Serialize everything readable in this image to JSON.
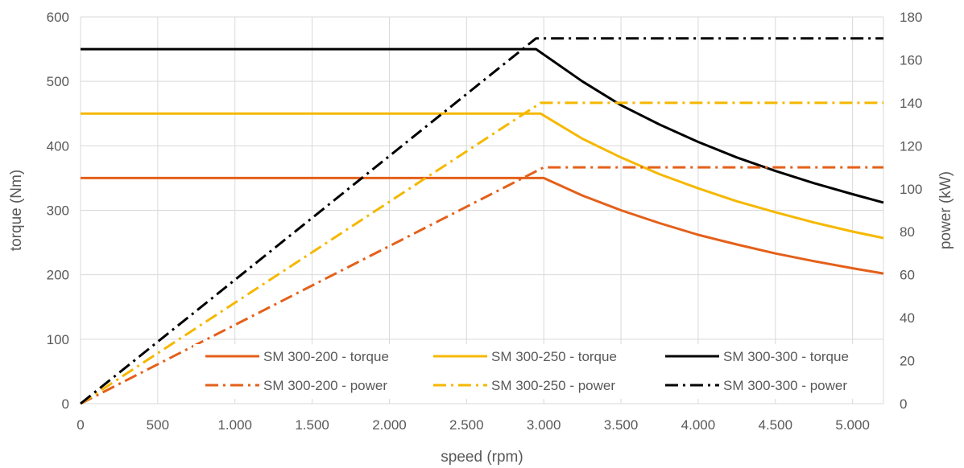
{
  "chart_data": {
    "type": "line",
    "title": "",
    "xlabel": "speed (rpm)",
    "ylabel": "torque (Nm)",
    "y2label": "power (kW)",
    "xlim": [
      0,
      5200
    ],
    "ylim": [
      0,
      600
    ],
    "y2lim": [
      0,
      180
    ],
    "x_ticks": [
      0,
      500,
      1000,
      1500,
      2000,
      2500,
      3000,
      3500,
      4000,
      4500,
      5000
    ],
    "x_tick_labels": [
      "0",
      "500",
      "1.000",
      "1.500",
      "2.000",
      "2.500",
      "3.000",
      "3.500",
      "4.000",
      "4.500",
      "5.000"
    ],
    "y_ticks": [
      0,
      100,
      200,
      300,
      400,
      500,
      600
    ],
    "y_tick_labels": [
      "0",
      "100",
      "200",
      "300",
      "400",
      "500",
      "600"
    ],
    "y2_ticks": [
      0,
      20,
      40,
      60,
      80,
      100,
      120,
      140,
      160,
      180
    ],
    "y2_tick_labels": [
      "0",
      "20",
      "40",
      "60",
      "80",
      "100",
      "120",
      "140",
      "160",
      "180"
    ],
    "grid": true,
    "legend_position": "bottom-right",
    "series": [
      {
        "name": "SM 300-200 - torque",
        "axis": "left",
        "style": "solid",
        "color": "#E4601A",
        "x": [
          0,
          3000,
          3250,
          3500,
          3750,
          4000,
          4250,
          4500,
          4750,
          5000,
          5200
        ],
        "y": [
          350,
          350,
          323,
          300,
          280,
          262,
          247,
          233,
          221,
          210,
          202
        ]
      },
      {
        "name": "SM 300-250 - torque",
        "axis": "left",
        "style": "solid",
        "color": "#F5B800",
        "x": [
          0,
          2980,
          3250,
          3500,
          3750,
          4000,
          4250,
          4500,
          4750,
          5000,
          5200
        ],
        "y": [
          450,
          450,
          411,
          382,
          356,
          334,
          314,
          297,
          281,
          267,
          257
        ]
      },
      {
        "name": "SM 300-300 - torque",
        "axis": "left",
        "style": "solid",
        "color": "#000000",
        "x": [
          0,
          2950,
          3250,
          3500,
          3750,
          4000,
          4250,
          4500,
          4750,
          5000,
          5200
        ],
        "y": [
          550,
          550,
          500,
          463,
          433,
          406,
          382,
          361,
          342,
          325,
          312
        ]
      },
      {
        "name": "SM 300-200 - power",
        "axis": "right",
        "style": "dashdot",
        "color": "#E4601A",
        "x": [
          0,
          3000,
          5200
        ],
        "y": [
          0,
          110,
          110
        ]
      },
      {
        "name": "SM 300-250 - power",
        "axis": "right",
        "style": "dashdot",
        "color": "#F5B800",
        "x": [
          0,
          2980,
          5200
        ],
        "y": [
          0,
          140,
          140
        ]
      },
      {
        "name": "SM 300-300 - power",
        "axis": "right",
        "style": "dashdot",
        "color": "#000000",
        "x": [
          0,
          2950,
          5200
        ],
        "y": [
          0,
          170,
          170
        ]
      }
    ]
  }
}
